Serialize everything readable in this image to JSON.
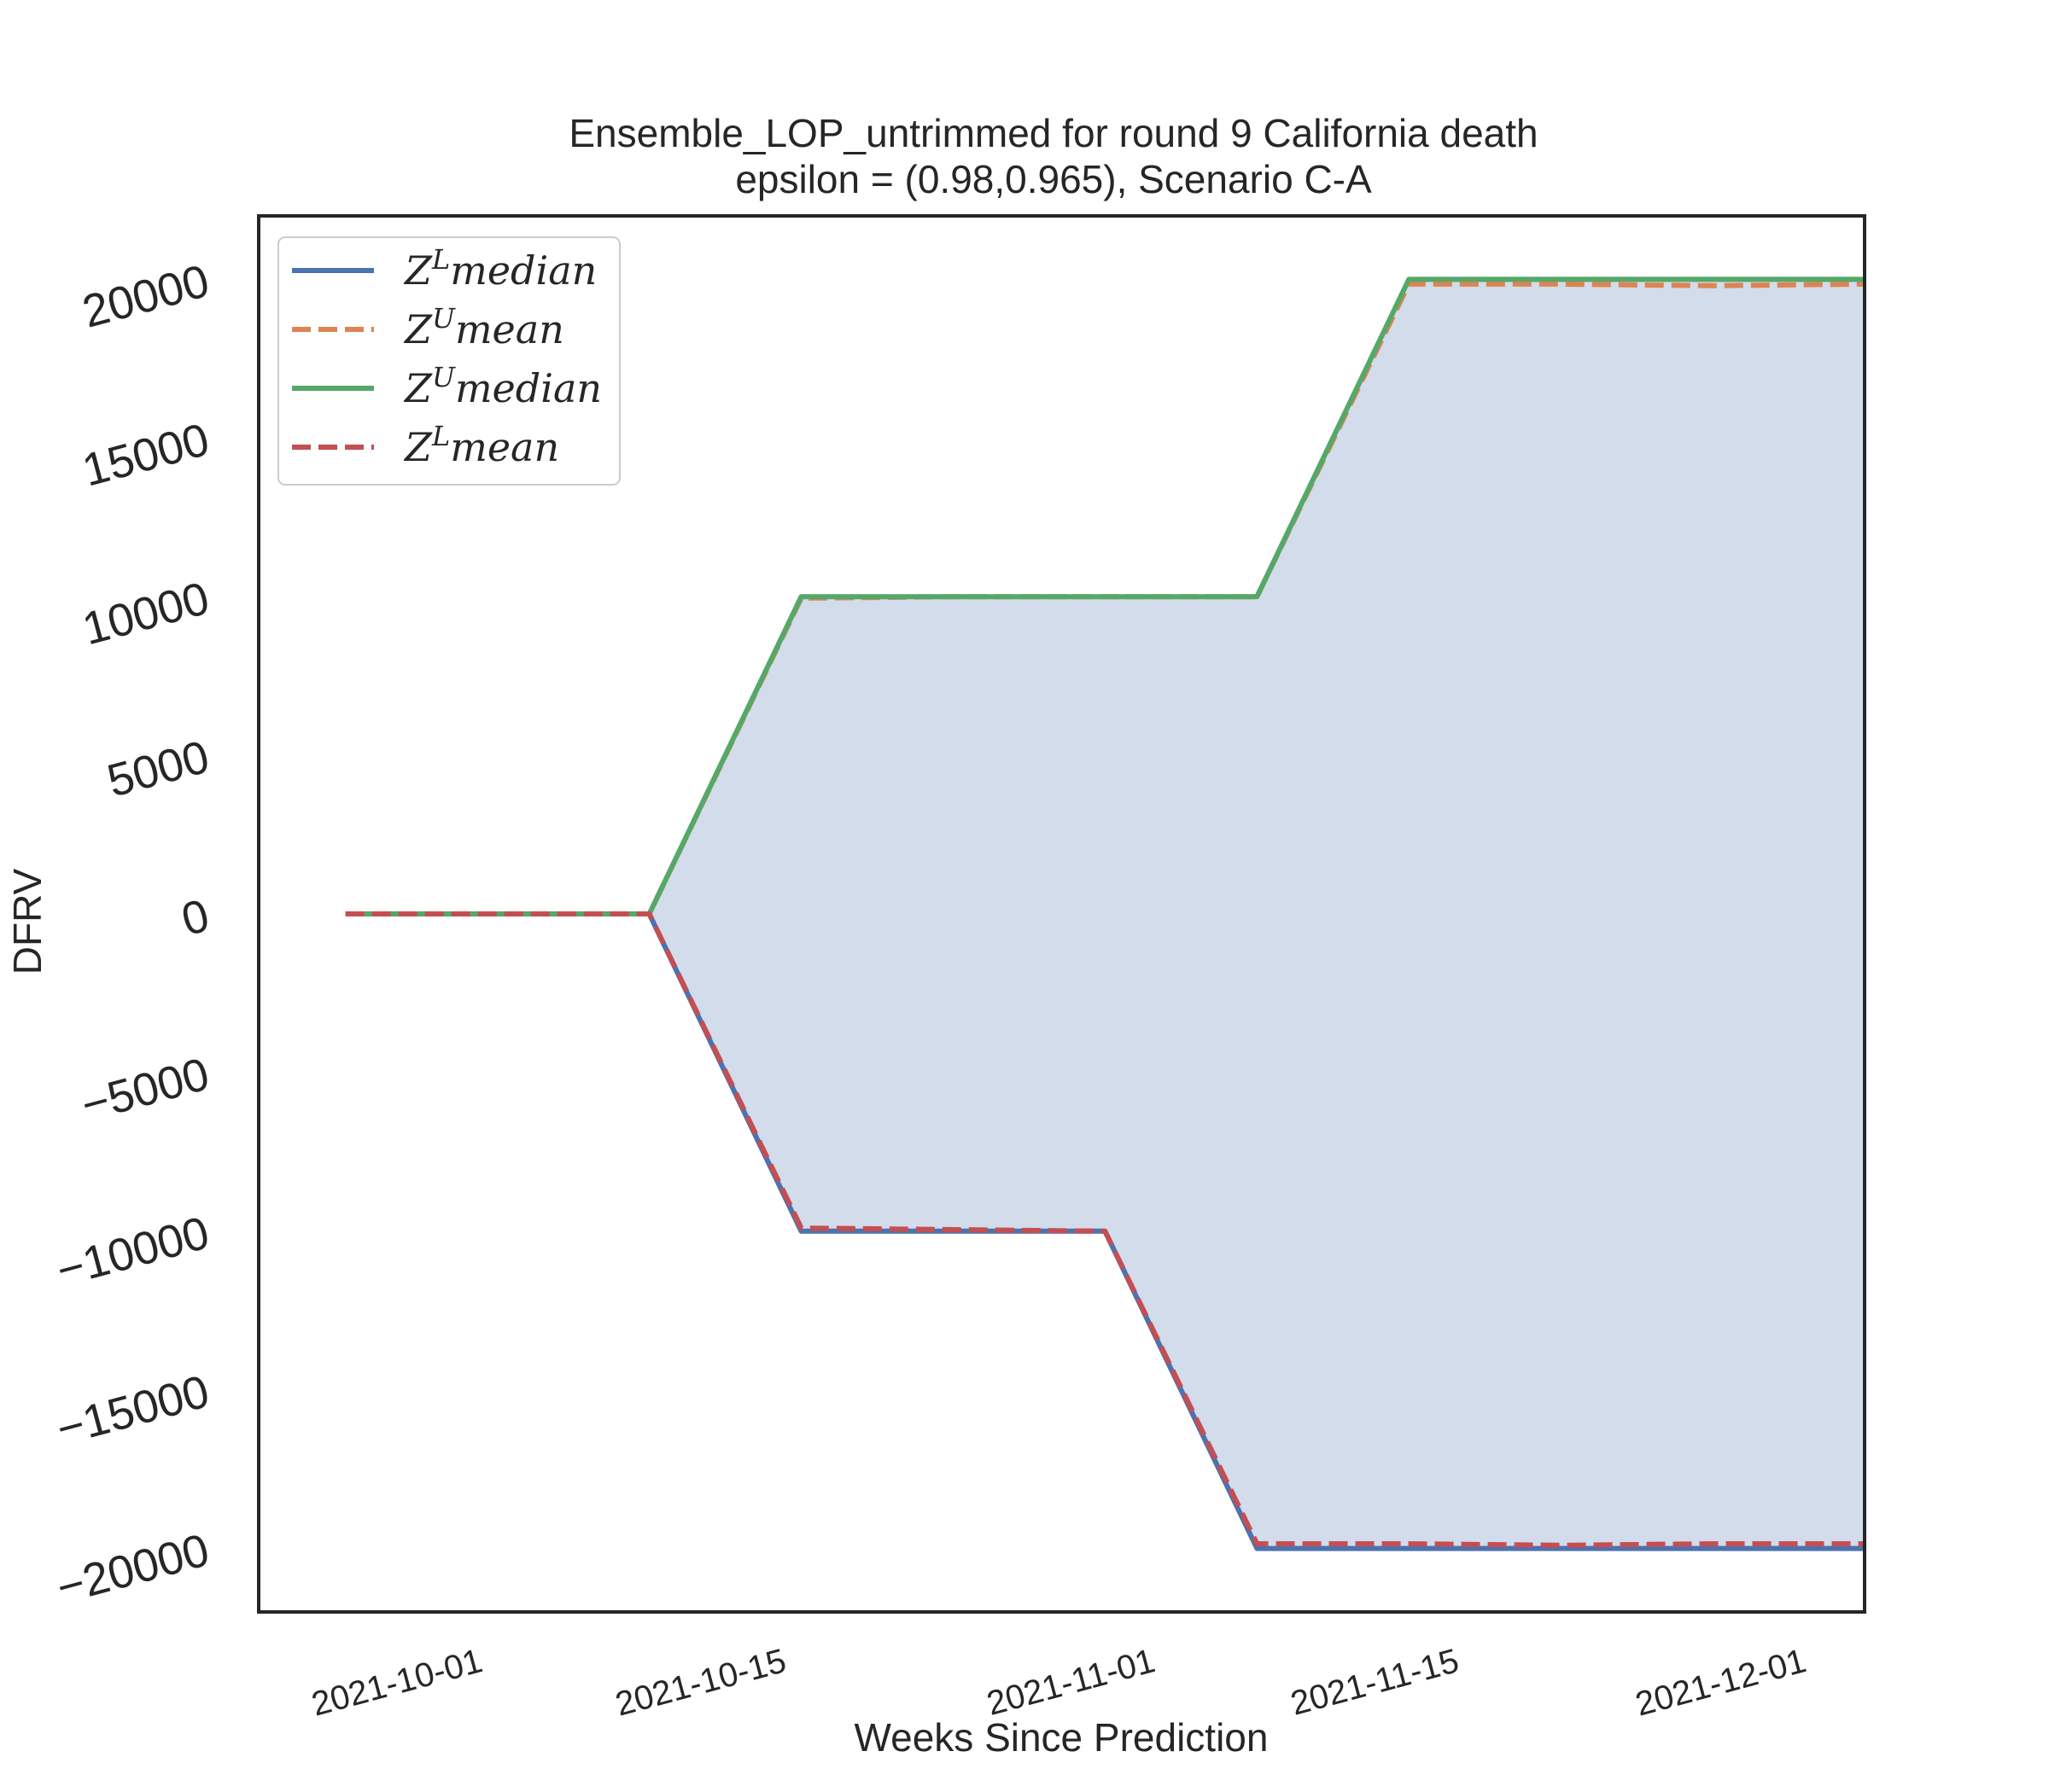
{
  "chart_data": {
    "type": "line",
    "title": "Ensemble_LOP_untrimmed for round 9 California  death",
    "subtitle": "epsilon = (0.98,0.965), Scenario C-A",
    "xlabel": "Weeks Since Prediction",
    "ylabel": "DFRV",
    "x_tick_labels": [
      "2021-10-01",
      "2021-10-15",
      "2021-11-01",
      "2021-11-15",
      "2021-12-01"
    ],
    "x_tick_dates": [
      "2021-10-01",
      "2021-10-15",
      "2021-11-01",
      "2021-11-15",
      "2021-12-01"
    ],
    "y_ticks": [
      -20000,
      -15000,
      -10000,
      -5000,
      0,
      5000,
      10000,
      15000,
      20000
    ],
    "y_tick_labels": [
      "−20000",
      "−15000",
      "−10000",
      "−5000",
      "0",
      "5000",
      "10000",
      "15000",
      "20000"
    ],
    "xlim": [
      "2021-09-21",
      "2021-12-04"
    ],
    "ylim": [
      -22000,
      22000
    ],
    "x": [
      "2021-09-25",
      "2021-10-02",
      "2021-10-09",
      "2021-10-16",
      "2021-10-23",
      "2021-10-30",
      "2021-11-06",
      "2021-11-13",
      "2021-11-20",
      "2021-11-27",
      "2021-12-04"
    ],
    "series": [
      {
        "name": "Z^L median",
        "color": "#4c72b0",
        "style": "solid",
        "values": [
          0,
          0,
          0,
          -10000,
          -10000,
          -10000,
          -20000,
          -20000,
          -20000,
          -20000,
          -20000
        ]
      },
      {
        "name": "Z^U mean",
        "color": "#dd8452",
        "style": "dashed",
        "values": [
          0,
          0,
          0,
          9950,
          10000,
          10000,
          10000,
          19850,
          19850,
          19800,
          19850
        ]
      },
      {
        "name": "Z^U median",
        "color": "#55a868",
        "style": "solid",
        "values": [
          0,
          0,
          0,
          10000,
          10000,
          10000,
          10000,
          20000,
          20000,
          20000,
          20000
        ]
      },
      {
        "name": "Z^L mean",
        "color": "#c44e52",
        "style": "dashed",
        "values": [
          0,
          0,
          0,
          -9900,
          -9950,
          -10000,
          -19850,
          -19850,
          -19900,
          -19850,
          -19850
        ]
      }
    ],
    "fill_between": {
      "lower": "Z^L median",
      "upper": "Z^U median",
      "color": "#4c72b0",
      "opacity": 0.25
    },
    "legend": {
      "placement": "upper-left",
      "entries": [
        {
          "base": "Z",
          "sup": "L",
          "rest": "median"
        },
        {
          "base": "Z",
          "sup": "U",
          "rest": "mean"
        },
        {
          "base": "Z",
          "sup": "U",
          "rest": "median"
        },
        {
          "base": "Z",
          "sup": "L",
          "rest": "mean"
        }
      ]
    },
    "grid": false
  }
}
